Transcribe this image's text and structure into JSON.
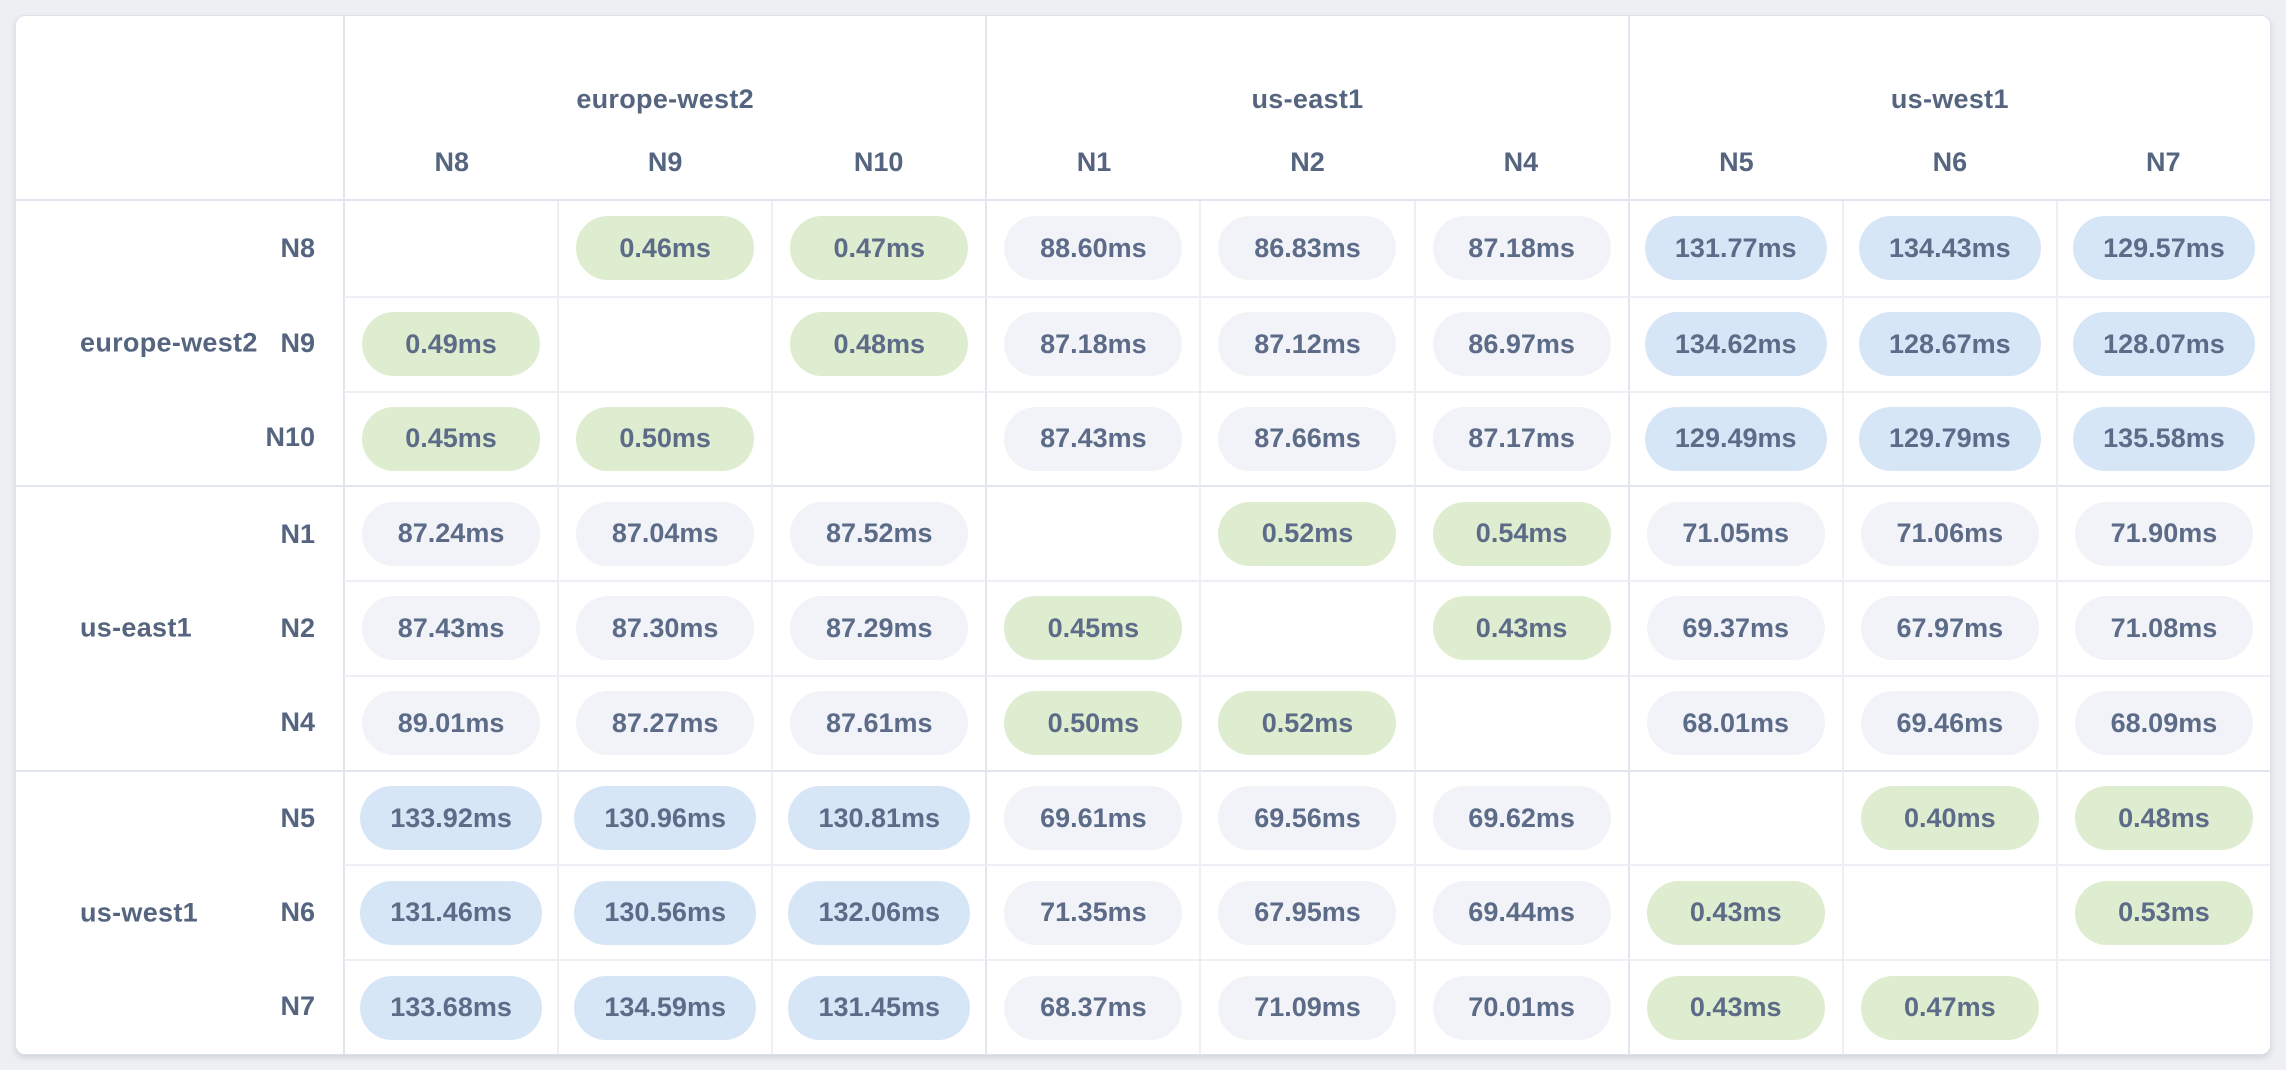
{
  "palette": {
    "pill_low": "#deeccf",
    "pill_mid": "#f1f3f8",
    "pill_high": "#d7e6f7",
    "pill_text": "#5c6b87",
    "header_text": "#55657f",
    "card_bg": "#ffffff",
    "page_bg": "#edeff3"
  },
  "groups": [
    {
      "label": "europe-west2",
      "nodes": [
        "N8",
        "N9",
        "N10"
      ]
    },
    {
      "label": "us-east1",
      "nodes": [
        "N1",
        "N2",
        "N4"
      ]
    },
    {
      "label": "us-west1",
      "nodes": [
        "N5",
        "N6",
        "N7"
      ]
    }
  ],
  "matrix": {
    "rows": [
      "N8",
      "N9",
      "N10",
      "N1",
      "N2",
      "N4",
      "N5",
      "N6",
      "N7"
    ],
    "cols": [
      "N8",
      "N9",
      "N10",
      "N1",
      "N2",
      "N4",
      "N5",
      "N6",
      "N7"
    ],
    "values": [
      [
        "",
        "0.46ms",
        "0.47ms",
        "88.60ms",
        "86.83ms",
        "87.18ms",
        "131.77ms",
        "134.43ms",
        "129.57ms"
      ],
      [
        "0.49ms",
        "",
        "0.48ms",
        "87.18ms",
        "87.12ms",
        "86.97ms",
        "134.62ms",
        "128.67ms",
        "128.07ms"
      ],
      [
        "0.45ms",
        "0.50ms",
        "",
        "87.43ms",
        "87.66ms",
        "87.17ms",
        "129.49ms",
        "129.79ms",
        "135.58ms"
      ],
      [
        "87.24ms",
        "87.04ms",
        "87.52ms",
        "",
        "0.52ms",
        "0.54ms",
        "71.05ms",
        "71.06ms",
        "71.90ms"
      ],
      [
        "87.43ms",
        "87.30ms",
        "87.29ms",
        "0.45ms",
        "",
        "0.43ms",
        "69.37ms",
        "67.97ms",
        "71.08ms"
      ],
      [
        "89.01ms",
        "87.27ms",
        "87.61ms",
        "0.50ms",
        "0.52ms",
        "",
        "68.01ms",
        "69.46ms",
        "68.09ms"
      ],
      [
        "133.92ms",
        "130.96ms",
        "130.81ms",
        "69.61ms",
        "69.56ms",
        "69.62ms",
        "",
        "0.40ms",
        "0.48ms"
      ],
      [
        "131.46ms",
        "130.56ms",
        "132.06ms",
        "71.35ms",
        "67.95ms",
        "69.44ms",
        "0.43ms",
        "",
        "0.53ms"
      ],
      [
        "133.68ms",
        "134.59ms",
        "131.45ms",
        "68.37ms",
        "71.09ms",
        "70.01ms",
        "0.43ms",
        "0.47ms",
        ""
      ]
    ]
  }
}
